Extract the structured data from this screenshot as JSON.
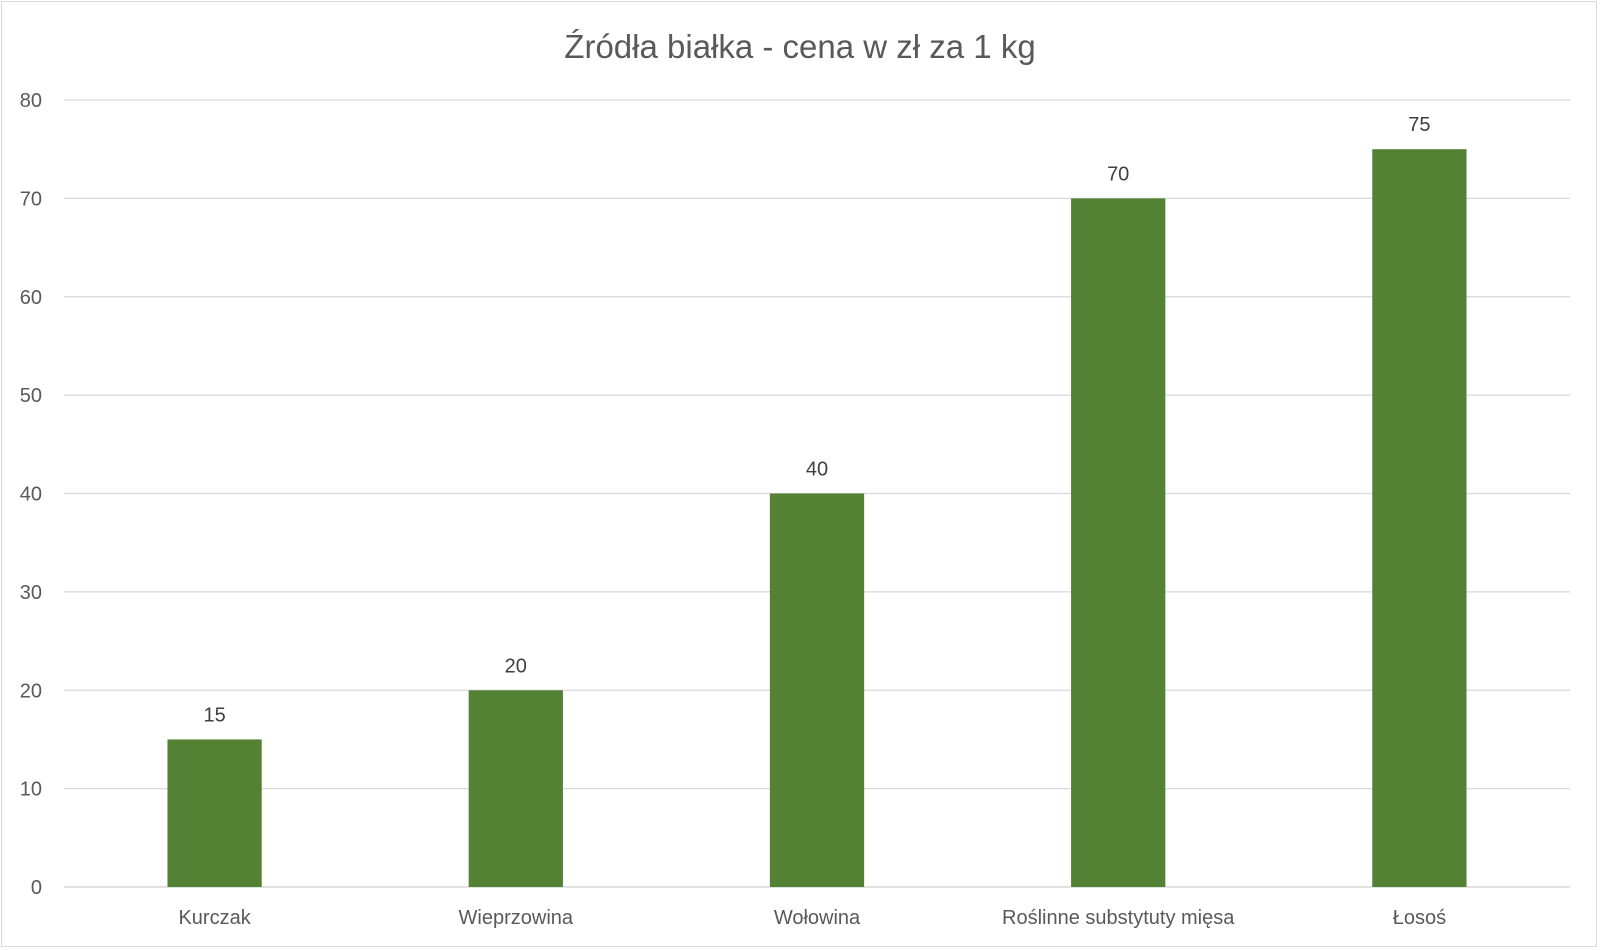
{
  "chart_data": {
    "type": "bar",
    "title": "Źródła białka - cena w zł za 1 kg",
    "categories": [
      "Kurczak",
      "Wieprzowina",
      "Wołowina",
      "Roślinne substytuty mięsa",
      "Łosoś"
    ],
    "series": [
      {
        "values": [
          15,
          20,
          40,
          70,
          75
        ]
      }
    ],
    "ylim": [
      0,
      80
    ],
    "yticks": [
      0,
      10,
      20,
      30,
      40,
      50,
      60,
      70,
      80
    ],
    "grid": true,
    "data_labels": true,
    "bar_color": "#548235"
  }
}
